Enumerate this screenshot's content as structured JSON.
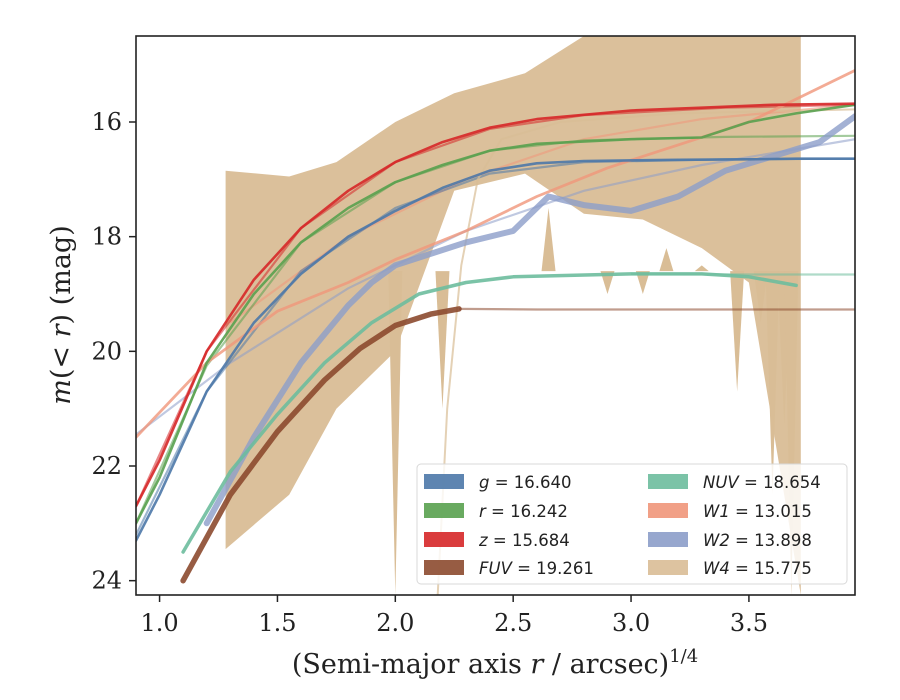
{
  "chart_data": {
    "type": "line",
    "xlabel": "(Semi-major axis r / arcsec)^{1/4}",
    "ylabel": "m(< r) (mag)",
    "xlim": [
      0.9,
      3.95
    ],
    "ylim": [
      24.25,
      14.5
    ],
    "y_inverted": true,
    "xticks": [
      1.0,
      1.5,
      2.0,
      2.5,
      3.0,
      3.5
    ],
    "xtick_labels": [
      "1.0",
      "1.5",
      "2.0",
      "2.5",
      "3.0",
      "3.5"
    ],
    "yticks": [
      16,
      18,
      20,
      22,
      24
    ],
    "ytick_labels": [
      "16",
      "18",
      "20",
      "22",
      "24"
    ],
    "grid": false,
    "legend_position": "lower right",
    "legend_columns": 2,
    "series": [
      {
        "key": "g",
        "legend_math": "g",
        "legend_value": "= 16.640",
        "color": "#4c78a8",
        "measured": [
          [
            0.9,
            23.3
          ],
          [
            1.0,
            22.5
          ],
          [
            1.2,
            20.7
          ],
          [
            1.4,
            19.5
          ],
          [
            1.6,
            18.65
          ],
          [
            1.8,
            18.0
          ],
          [
            2.0,
            17.55
          ],
          [
            2.2,
            17.15
          ],
          [
            2.4,
            16.85
          ],
          [
            2.6,
            16.72
          ],
          [
            2.8,
            16.68
          ],
          [
            3.2,
            16.66
          ],
          [
            3.5,
            16.65
          ],
          [
            3.7,
            16.64
          ],
          [
            3.95,
            16.64
          ]
        ],
        "model": [
          [
            0.9,
            23.2
          ],
          [
            1.2,
            20.7
          ],
          [
            1.6,
            18.6
          ],
          [
            2.0,
            17.5
          ],
          [
            2.4,
            16.9
          ],
          [
            2.8,
            16.7
          ],
          [
            3.4,
            16.65
          ],
          [
            3.95,
            16.64
          ]
        ]
      },
      {
        "key": "r",
        "legend_math": "r",
        "legend_value": "= 16.242",
        "color": "#59a14f",
        "measured": [
          [
            0.9,
            23.0
          ],
          [
            1.0,
            22.2
          ],
          [
            1.2,
            20.2
          ],
          [
            1.4,
            19.0
          ],
          [
            1.6,
            18.1
          ],
          [
            1.8,
            17.5
          ],
          [
            2.0,
            17.05
          ],
          [
            2.2,
            16.75
          ],
          [
            2.4,
            16.5
          ],
          [
            2.6,
            16.38
          ],
          [
            3.0,
            16.3
          ],
          [
            3.3,
            16.27
          ],
          [
            3.5,
            16.0
          ],
          [
            3.7,
            15.85
          ],
          [
            3.95,
            15.7
          ]
        ],
        "model": [
          [
            0.9,
            23.0
          ],
          [
            1.2,
            20.25
          ],
          [
            1.6,
            18.1
          ],
          [
            2.0,
            17.05
          ],
          [
            2.4,
            16.5
          ],
          [
            2.8,
            16.32
          ],
          [
            3.4,
            16.26
          ],
          [
            3.95,
            16.24
          ]
        ]
      },
      {
        "key": "z",
        "legend_math": "z",
        "legend_value": "= 15.684",
        "color": "#d62728",
        "measured": [
          [
            0.9,
            22.7
          ],
          [
            1.0,
            21.9
          ],
          [
            1.2,
            20.0
          ],
          [
            1.4,
            18.75
          ],
          [
            1.6,
            17.85
          ],
          [
            1.8,
            17.2
          ],
          [
            2.0,
            16.7
          ],
          [
            2.2,
            16.35
          ],
          [
            2.4,
            16.1
          ],
          [
            2.6,
            15.95
          ],
          [
            3.0,
            15.8
          ],
          [
            3.3,
            15.75
          ],
          [
            3.6,
            15.7
          ],
          [
            3.95,
            15.68
          ]
        ],
        "model": [
          [
            0.9,
            22.7
          ],
          [
            1.2,
            20.0
          ],
          [
            1.6,
            17.85
          ],
          [
            2.0,
            16.7
          ],
          [
            2.4,
            16.12
          ],
          [
            2.8,
            15.88
          ],
          [
            3.4,
            15.75
          ],
          [
            3.95,
            15.7
          ]
        ]
      },
      {
        "key": "FUV",
        "legend_math": "FUV",
        "legend_value": "= 19.261",
        "color": "#8c4a2f",
        "measured": [
          [
            1.1,
            24.0
          ],
          [
            1.3,
            22.5
          ],
          [
            1.5,
            21.4
          ],
          [
            1.7,
            20.5
          ],
          [
            1.85,
            19.95
          ],
          [
            2.0,
            19.55
          ],
          [
            2.15,
            19.35
          ],
          [
            2.27,
            19.26
          ]
        ],
        "model": [
          [
            2.27,
            19.26
          ],
          [
            2.6,
            19.27
          ],
          [
            3.0,
            19.27
          ],
          [
            3.5,
            19.27
          ],
          [
            3.95,
            19.27
          ]
        ]
      },
      {
        "key": "NUV",
        "legend_math": "NUV",
        "legend_value": "= 18.654",
        "color": "#6dbd9d",
        "measured": [
          [
            1.1,
            23.5
          ],
          [
            1.3,
            22.1
          ],
          [
            1.5,
            21.1
          ],
          [
            1.7,
            20.2
          ],
          [
            1.9,
            19.5
          ],
          [
            2.1,
            19.0
          ],
          [
            2.3,
            18.8
          ],
          [
            2.5,
            18.7
          ],
          [
            3.0,
            18.65
          ],
          [
            3.3,
            18.65
          ],
          [
            3.5,
            18.7
          ],
          [
            3.7,
            18.85
          ]
        ],
        "model": [
          [
            3.0,
            18.65
          ],
          [
            3.5,
            18.66
          ],
          [
            3.95,
            18.66
          ]
        ]
      },
      {
        "key": "W1",
        "legend_math": "W1",
        "legend_value": "= 13.015",
        "color": "#f0967a",
        "measured": [
          [
            0.9,
            21.5
          ],
          [
            1.2,
            20.2
          ],
          [
            1.5,
            19.3
          ],
          [
            1.8,
            18.8
          ],
          [
            2.0,
            18.4
          ],
          [
            2.3,
            17.9
          ],
          [
            2.6,
            17.3
          ],
          [
            2.9,
            16.8
          ],
          [
            3.2,
            16.4
          ],
          [
            3.5,
            16.0
          ],
          [
            3.7,
            15.6
          ],
          [
            3.95,
            15.1
          ]
        ],
        "model": [
          [
            1.3,
            19.5
          ],
          [
            1.8,
            18.0
          ],
          [
            2.3,
            17.0
          ],
          [
            2.8,
            16.3
          ],
          [
            3.3,
            15.95
          ],
          [
            3.95,
            15.7
          ]
        ]
      },
      {
        "key": "W2",
        "legend_math": "W2",
        "legend_value": "= 13.898",
        "color": "#8c9dc9",
        "measured": [
          [
            1.2,
            23.0
          ],
          [
            1.4,
            21.5
          ],
          [
            1.6,
            20.2
          ],
          [
            1.8,
            19.2
          ],
          [
            1.9,
            18.8
          ],
          [
            2.0,
            18.5
          ],
          [
            2.3,
            18.1
          ],
          [
            2.5,
            17.9
          ],
          [
            2.65,
            17.3
          ],
          [
            2.8,
            17.45
          ],
          [
            3.0,
            17.55
          ],
          [
            3.2,
            17.3
          ],
          [
            3.4,
            16.85
          ],
          [
            3.6,
            16.6
          ],
          [
            3.8,
            16.35
          ],
          [
            3.95,
            15.9
          ]
        ],
        "model": [
          [
            0.9,
            21.45
          ],
          [
            1.3,
            20.2
          ],
          [
            1.8,
            18.9
          ],
          [
            2.3,
            17.9
          ],
          [
            2.8,
            17.2
          ],
          [
            3.3,
            16.75
          ],
          [
            3.95,
            16.3
          ]
        ]
      },
      {
        "key": "W4",
        "legend_math": "W4",
        "legend_value": "= 15.775",
        "color": "#d9bd96",
        "band_x": [
          1.28,
          1.55,
          1.75,
          2.0,
          2.25,
          2.55,
          2.8,
          3.05,
          3.3,
          3.5,
          3.72
        ],
        "band_upper": [
          16.85,
          16.95,
          16.7,
          16.0,
          15.5,
          15.15,
          14.5,
          14.5,
          14.5,
          14.5,
          14.5
        ],
        "band_lower": [
          23.45,
          22.5,
          21.0,
          20.0,
          17.2,
          16.9,
          17.6,
          17.7,
          18.2,
          18.8,
          24.25
        ],
        "spikes": [
          [
            2.0,
            24.25
          ],
          [
            2.2,
            21.0
          ],
          [
            2.65,
            17.5
          ],
          [
            2.9,
            19.0
          ],
          [
            3.05,
            19.0
          ],
          [
            3.15,
            18.2
          ],
          [
            3.3,
            18.5
          ],
          [
            3.45,
            20.7
          ],
          [
            3.55,
            19.5
          ],
          [
            3.6,
            22.5
          ],
          [
            3.65,
            21.3
          ],
          [
            3.68,
            24.25
          ]
        ],
        "model": [
          [
            2.18,
            24.25
          ],
          [
            2.22,
            21.0
          ],
          [
            2.28,
            18.5
          ],
          [
            2.35,
            17.0
          ],
          [
            2.45,
            16.3
          ],
          [
            2.7,
            16.0
          ],
          [
            3.2,
            15.85
          ],
          [
            3.95,
            15.78
          ]
        ]
      }
    ]
  }
}
